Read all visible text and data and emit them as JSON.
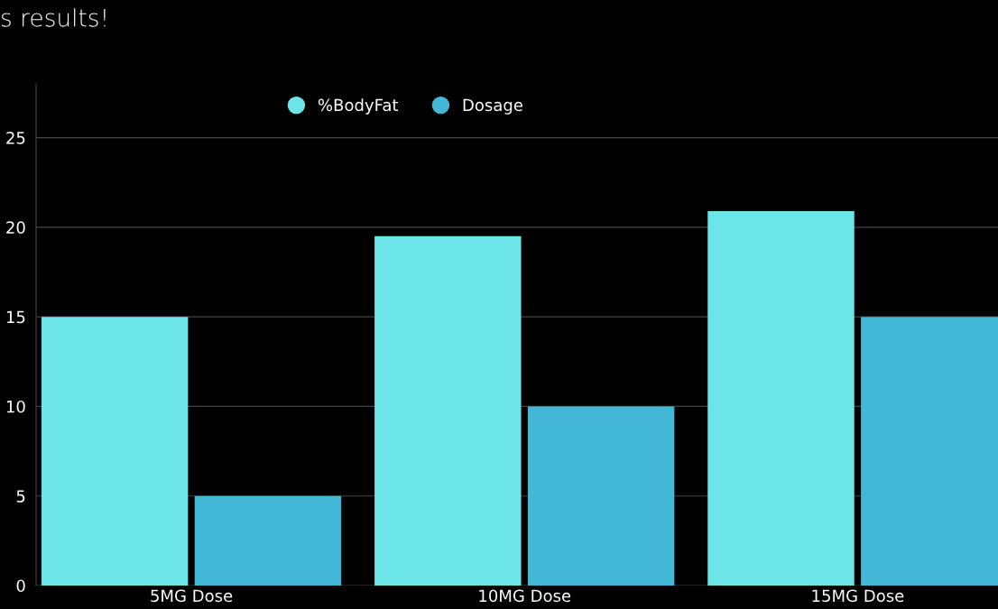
{
  "chart_data": {
    "type": "bar",
    "title": "s results!",
    "categories": [
      "5MG Dose",
      "10MG Dose",
      "15MG Dose"
    ],
    "series": [
      {
        "name": "%BodyFat",
        "color": "#6ce5e8",
        "values": [
          15,
          19.5,
          20.9
        ]
      },
      {
        "name": "Dosage",
        "color": "#42b7d6",
        "values": [
          5,
          10,
          15
        ]
      }
    ],
    "ylim": [
      0,
      28
    ],
    "yticks": [
      0,
      5,
      10,
      15,
      20,
      25
    ],
    "grid": "y",
    "legend": "top"
  }
}
